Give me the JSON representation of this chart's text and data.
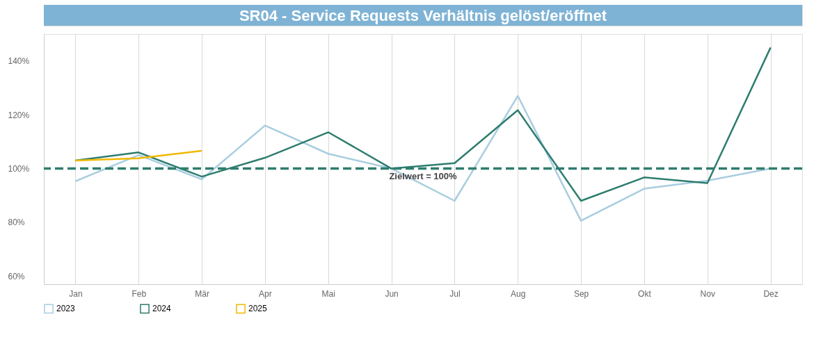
{
  "chart_data": {
    "type": "line",
    "title": "SR04 - Service Requests Verhältnis gelöst/eröffnet",
    "categories": [
      "Jan",
      "Feb",
      "Mär",
      "Apr",
      "Mai",
      "Jun",
      "Jul",
      "Aug",
      "Sep",
      "Okt",
      "Nov",
      "Dez"
    ],
    "series": [
      {
        "name": "2023",
        "color": "#a8cde0",
        "values": [
          95.3,
          105,
          96,
          116,
          105.5,
          100,
          88,
          127,
          80.6,
          92.5,
          95.5,
          100
        ]
      },
      {
        "name": "2024",
        "color": "#2e7d6e",
        "values": [
          103,
          106,
          97,
          104,
          113.5,
          100,
          102,
          121.7,
          88,
          96.7,
          94.6,
          145
        ]
      },
      {
        "name": "2025",
        "color": "#f2b800",
        "values": [
          103,
          103.8,
          106.6,
          null,
          null,
          null,
          null,
          null,
          null,
          null,
          null,
          null
        ]
      }
    ],
    "ylim": [
      57,
      150
    ],
    "yticks": [
      {
        "value": 60,
        "label": "60%"
      },
      {
        "value": 80,
        "label": "80%"
      },
      {
        "value": 100,
        "label": "100%"
      },
      {
        "value": 120,
        "label": "120%"
      },
      {
        "value": 140,
        "label": "140%"
      }
    ],
    "ref_lines": [
      {
        "axis": "y",
        "value": 100,
        "label": "Zielwert = 100%",
        "color": "#2e7d6e",
        "line_style": "dashed"
      }
    ],
    "grid": "x",
    "legend": "bottom",
    "line_style": "solid",
    "marker": "none"
  }
}
